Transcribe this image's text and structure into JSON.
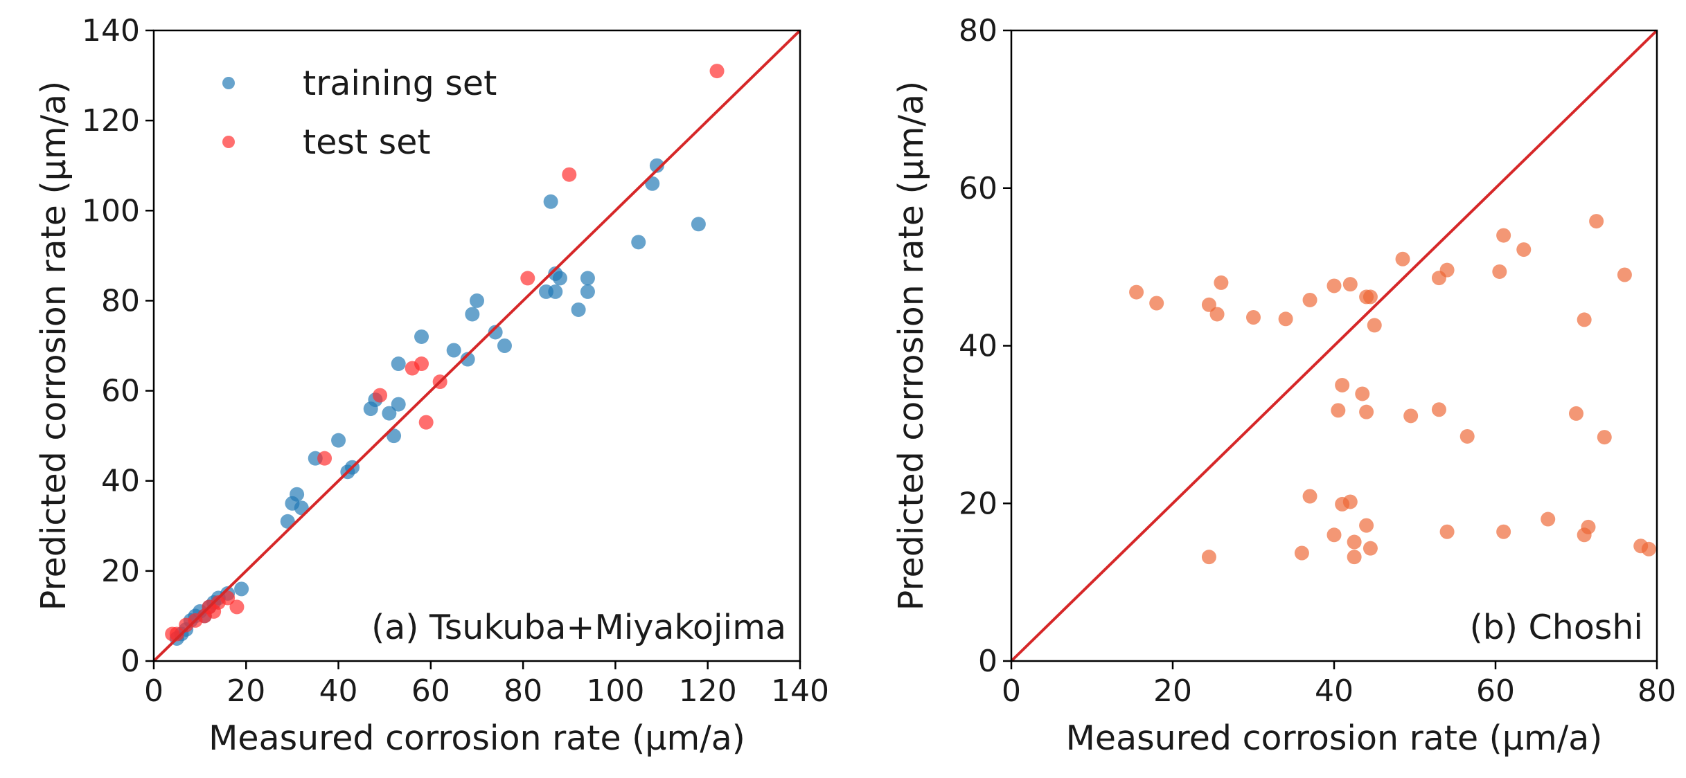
{
  "chart_data": [
    {
      "type": "scatter",
      "xlabel": "Measured corrosion rate (μm/a)",
      "ylabel": "Predicted corrosion rate (μm/a)",
      "xlim": [
        0,
        140
      ],
      "ylim": [
        0,
        140
      ],
      "xticks": [
        0,
        20,
        40,
        60,
        80,
        100,
        120,
        140
      ],
      "yticks": [
        0,
        20,
        40,
        60,
        80,
        100,
        120,
        140
      ],
      "annotation": "(a) Tsukuba+Miyakojima",
      "legend_position": "upper-left",
      "reference_line": {
        "from": [
          0,
          0
        ],
        "to": [
          140,
          140
        ],
        "color": "#d62728"
      },
      "series": [
        {
          "name": "training set",
          "color": "#1f77b4",
          "points": [
            [
              5,
              5
            ],
            [
              6,
              6
            ],
            [
              7,
              7
            ],
            [
              8,
              9
            ],
            [
              9,
              10
            ],
            [
              10,
              11
            ],
            [
              11,
              10
            ],
            [
              12,
              12
            ],
            [
              13,
              13
            ],
            [
              14,
              14
            ],
            [
              16,
              15
            ],
            [
              19,
              16
            ],
            [
              29,
              31
            ],
            [
              30,
              35
            ],
            [
              31,
              37
            ],
            [
              32,
              34
            ],
            [
              35,
              45
            ],
            [
              40,
              49
            ],
            [
              42,
              42
            ],
            [
              43,
              43
            ],
            [
              47,
              56
            ],
            [
              48,
              58
            ],
            [
              51,
              55
            ],
            [
              52,
              50
            ],
            [
              53,
              57
            ],
            [
              53,
              66
            ],
            [
              58,
              72
            ],
            [
              65,
              69
            ],
            [
              68,
              67
            ],
            [
              69,
              77
            ],
            [
              70,
              80
            ],
            [
              74,
              73
            ],
            [
              76,
              70
            ],
            [
              85,
              82
            ],
            [
              86,
              102
            ],
            [
              87,
              86
            ],
            [
              87,
              82
            ],
            [
              88,
              85
            ],
            [
              92,
              78
            ],
            [
              94,
              85
            ],
            [
              94,
              82
            ],
            [
              105,
              93
            ],
            [
              108,
              106
            ],
            [
              109,
              110
            ],
            [
              118,
              97
            ]
          ]
        },
        {
          "name": "test set",
          "color": "#ff2a2a",
          "points": [
            [
              4,
              6
            ],
            [
              5,
              6
            ],
            [
              7,
              8
            ],
            [
              9,
              9
            ],
            [
              11,
              10
            ],
            [
              12,
              12
            ],
            [
              13,
              11
            ],
            [
              14,
              13
            ],
            [
              16,
              14
            ],
            [
              18,
              12
            ],
            [
              37,
              45
            ],
            [
              49,
              59
            ],
            [
              56,
              65
            ],
            [
              58,
              66
            ],
            [
              59,
              53
            ],
            [
              62,
              62
            ],
            [
              81,
              85
            ],
            [
              90,
              108
            ],
            [
              122,
              131
            ]
          ]
        }
      ]
    },
    {
      "type": "scatter",
      "xlabel": "Measured corrosion rate (μm/a)",
      "ylabel": "Predicted corrosion rate (μm/a)",
      "xlim": [
        0,
        80
      ],
      "ylim": [
        0,
        80
      ],
      "xticks": [
        0,
        20,
        40,
        60,
        80
      ],
      "yticks": [
        0,
        20,
        40,
        60,
        80
      ],
      "annotation": "(b) Choshi",
      "reference_line": {
        "from": [
          0,
          0
        ],
        "to": [
          80,
          80
        ],
        "color": "#d62728"
      },
      "series": [
        {
          "color": "#ee6633",
          "points": [
            [
              15.5,
              46.8
            ],
            [
              18,
              45.4
            ],
            [
              24.5,
              45.2
            ],
            [
              25.5,
              44
            ],
            [
              26,
              48
            ],
            [
              30,
              43.6
            ],
            [
              34,
              43.4
            ],
            [
              37,
              45.8
            ],
            [
              40,
              47.6
            ],
            [
              42,
              47.8
            ],
            [
              44,
              46.2
            ],
            [
              44.5,
              46.2
            ],
            [
              45,
              42.6
            ],
            [
              48.5,
              51
            ],
            [
              53,
              48.6
            ],
            [
              54,
              49.6
            ],
            [
              60.5,
              49.4
            ],
            [
              61,
              54
            ],
            [
              63.5,
              52.2
            ],
            [
              71,
              43.3
            ],
            [
              72.5,
              55.8
            ],
            [
              76,
              49
            ],
            [
              41,
              35
            ],
            [
              40.5,
              31.8
            ],
            [
              43.5,
              33.9
            ],
            [
              44,
              31.6
            ],
            [
              49.5,
              31.1
            ],
            [
              53,
              31.9
            ],
            [
              56.5,
              28.5
            ],
            [
              70,
              31.4
            ],
            [
              73.5,
              28.4
            ],
            [
              37,
              20.9
            ],
            [
              41,
              19.9
            ],
            [
              42,
              20.2
            ],
            [
              24.5,
              13.2
            ],
            [
              36,
              13.7
            ],
            [
              40,
              16
            ],
            [
              42.5,
              15.1
            ],
            [
              42.5,
              13.2
            ],
            [
              44,
              17.2
            ],
            [
              44.5,
              14.3
            ],
            [
              54,
              16.4
            ],
            [
              61,
              16.4
            ],
            [
              66.5,
              18
            ],
            [
              71,
              16
            ],
            [
              71.5,
              17
            ],
            [
              78,
              14.6
            ],
            [
              79,
              14.2
            ]
          ]
        }
      ]
    }
  ]
}
